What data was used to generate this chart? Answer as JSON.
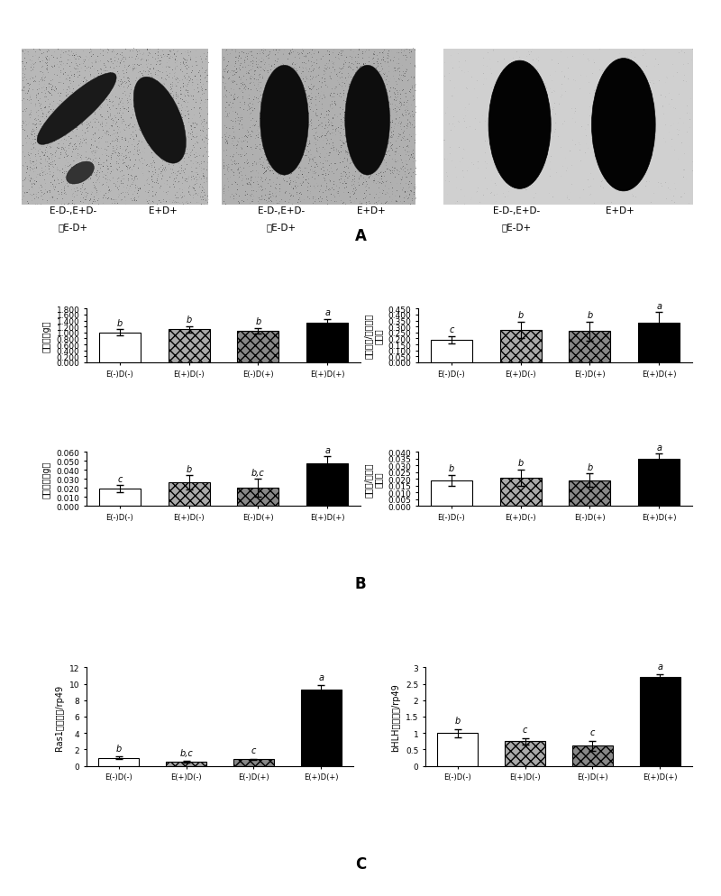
{
  "categories": [
    "E(-)D(-)",
    "E(+)D(-)",
    "E(-)D(+)",
    "E(+)D(+)"
  ],
  "panel_B1": {
    "ylabel": "总体重（g）",
    "values": [
      1.0,
      1.1,
      1.05,
      1.32
    ],
    "errors": [
      0.1,
      0.12,
      0.1,
      0.13
    ],
    "ylim": [
      0,
      1.8
    ],
    "yticks": [
      0.0,
      0.2,
      0.4,
      0.6,
      0.8,
      1.0,
      1.2,
      1.4,
      1.6,
      1.8
    ],
    "ytick_labels": [
      "0.000",
      "0.200",
      "0.400",
      "0.600",
      "0.800",
      "1.000",
      "1.200",
      "1.400",
      "1.600",
      "1.800"
    ],
    "letters": [
      "b",
      "b",
      "b",
      "a"
    ]
  },
  "panel_B2": {
    "ylabel": "后丝腺重/总丝腺重\n的比值",
    "values": [
      0.19,
      0.27,
      0.26,
      0.33
    ],
    "errors": [
      0.03,
      0.07,
      0.08,
      0.09
    ],
    "ylim": [
      0,
      0.45
    ],
    "yticks": [
      0.0,
      0.05,
      0.1,
      0.15,
      0.2,
      0.25,
      0.3,
      0.35,
      0.4,
      0.45
    ],
    "ytick_labels": [
      "0.000",
      "0.050",
      "0.100",
      "0.150",
      "0.200",
      "0.250",
      "0.300",
      "0.350",
      "0.400",
      "0.450"
    ],
    "letters": [
      "c",
      "b",
      "b",
      "a"
    ]
  },
  "panel_B3": {
    "ylabel": "后丝腺重（g）",
    "values": [
      0.019,
      0.026,
      0.02,
      0.047
    ],
    "errors": [
      0.004,
      0.008,
      0.01,
      0.008
    ],
    "ylim": [
      0,
      0.06
    ],
    "yticks": [
      0.0,
      0.01,
      0.02,
      0.03,
      0.04,
      0.05,
      0.06
    ],
    "ytick_labels": [
      "0.000",
      "0.010",
      "0.020",
      "0.030",
      "0.040",
      "0.050",
      "0.060"
    ],
    "letters": [
      "c",
      "b",
      "b,c",
      "a"
    ]
  },
  "panel_B4": {
    "ylabel": "后丝腺/总体重\n的比值",
    "values": [
      0.019,
      0.021,
      0.019,
      0.035
    ],
    "errors": [
      0.004,
      0.006,
      0.005,
      0.004
    ],
    "ylim": [
      0,
      0.04
    ],
    "yticks": [
      0.0,
      0.005,
      0.01,
      0.015,
      0.02,
      0.025,
      0.03,
      0.035,
      0.04
    ],
    "ytick_labels": [
      "0.000",
      "0.005",
      "0.010",
      "0.015",
      "0.020",
      "0.025",
      "0.030",
      "0.035",
      "0.040"
    ],
    "letters": [
      "b",
      "b",
      "b",
      "a"
    ]
  },
  "panel_C1": {
    "ylabel": "Ras1表达水平/rp49",
    "values": [
      1.0,
      0.5,
      0.8,
      9.3
    ],
    "errors": [
      0.15,
      0.1,
      0.1,
      0.5
    ],
    "ylim": [
      0,
      12
    ],
    "yticks": [
      0,
      2,
      4,
      6,
      8,
      10,
      12
    ],
    "ytick_labels": [
      "0",
      "2",
      "4",
      "6",
      "8",
      "10",
      "12"
    ],
    "letters": [
      "b",
      "b,c",
      "c",
      "a"
    ]
  },
  "panel_C2": {
    "ylabel": "bHLH表达水平/rp49",
    "values": [
      1.0,
      0.75,
      0.62,
      2.7
    ],
    "errors": [
      0.12,
      0.1,
      0.15,
      0.08
    ],
    "ylim": [
      0,
      3
    ],
    "yticks": [
      0,
      0.5,
      1.0,
      1.5,
      2.0,
      2.5,
      3.0
    ],
    "ytick_labels": [
      "0",
      "0.5",
      "1",
      "1.5",
      "2",
      "2.5",
      "3"
    ],
    "letters": [
      "b",
      "c",
      "c",
      "a"
    ]
  }
}
